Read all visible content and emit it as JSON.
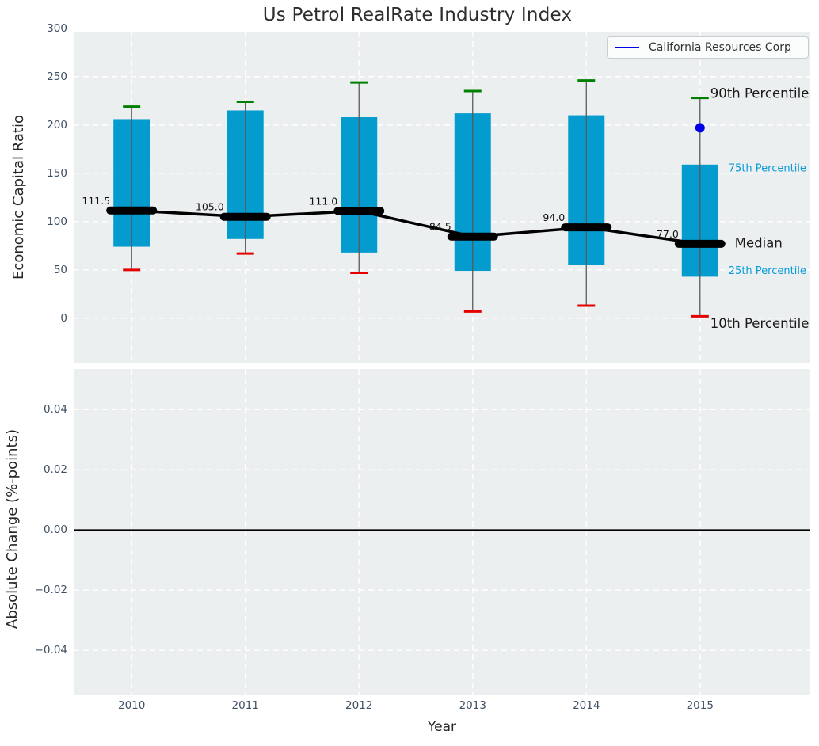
{
  "title": "Us Petrol RealRate Industry Index",
  "legend": {
    "label": "California Resources Corp",
    "line_color": "#0000e6",
    "position": "upper right"
  },
  "colors": {
    "panel_background": "#ebeff0",
    "grid": "#ffffff",
    "box_fill": "#049bce",
    "whisker": "#5a5a5a",
    "cap_90th": "#008000",
    "cap_10th": "#e50000",
    "median": "#000000",
    "company_point": "#0000e6",
    "tick_label": "#3f5063",
    "percentile_minor_label": "#0a9bd6",
    "percentile_major_label": "#1a1a1a",
    "zero_line": "#000000"
  },
  "chart_data": [
    {
      "type": "box",
      "panel": "top",
      "title": "Us Petrol RealRate Industry Index",
      "xlabel": "",
      "ylabel": "Economic Capital Ratio",
      "categories": [
        2010,
        2011,
        2012,
        2013,
        2014,
        2015
      ],
      "yticks": [
        {
          "v": 300,
          "label": "300"
        },
        {
          "v": 250,
          "label": "250"
        },
        {
          "v": 200,
          "label": "200"
        },
        {
          "v": 150,
          "label": "150"
        },
        {
          "v": 100,
          "label": "100"
        },
        {
          "v": 50,
          "label": "50"
        },
        {
          "v": 0,
          "label": "0"
        }
      ],
      "ylim": [
        -46,
        296.5
      ],
      "xlim": [
        2009.49,
        2015.97
      ],
      "grid": true,
      "boxes": [
        {
          "year": 2010,
          "p10": 50,
          "p25": 74,
          "median": 111.5,
          "p75": 206,
          "p90": 219,
          "median_label": "111.5"
        },
        {
          "year": 2011,
          "p10": 67,
          "p25": 82,
          "median": 105.0,
          "p75": 215,
          "p90": 224,
          "median_label": "105.0"
        },
        {
          "year": 2012,
          "p10": 47,
          "p25": 68,
          "median": 111.0,
          "p75": 208,
          "p90": 244,
          "median_label": "111.0"
        },
        {
          "year": 2013,
          "p10": 7,
          "p25": 49,
          "median": 84.5,
          "p75": 212,
          "p90": 235,
          "median_label": "84.5"
        },
        {
          "year": 2014,
          "p10": 13,
          "p25": 55,
          "median": 94.0,
          "p75": 210,
          "p90": 246,
          "median_label": "94.0"
        },
        {
          "year": 2015,
          "p10": 2,
          "p25": 43,
          "median": 77.0,
          "p75": 159,
          "p90": 228,
          "median_label": "77.0"
        }
      ],
      "median_line": [
        111.5,
        105.0,
        111.0,
        84.5,
        94.0,
        77.0
      ],
      "series": [
        {
          "name": "California Resources Corp",
          "type": "scatter",
          "color": "#0000e6",
          "points": [
            {
              "x": 2015,
              "y": 197
            }
          ]
        }
      ],
      "annotations": [
        {
          "text": "90th Percentile",
          "kind": "major",
          "at_value": 233,
          "dx": 13
        },
        {
          "text": "75th Percentile",
          "kind": "minor",
          "at_value": 155,
          "dx": 36
        },
        {
          "text": "Median",
          "kind": "major",
          "at_value": 78,
          "dx": 44
        },
        {
          "text": "25th Percentile",
          "kind": "minor",
          "at_value": 49,
          "dx": 36
        },
        {
          "text": "10th Percentile",
          "kind": "major",
          "at_value": -5,
          "dx": 13
        }
      ]
    },
    {
      "type": "line",
      "panel": "bottom",
      "xlabel": "Year",
      "ylabel": "Absolute Change (%-points)",
      "yticks": [
        {
          "v": 0.04,
          "label": "0.04"
        },
        {
          "v": 0.02,
          "label": "0.02"
        },
        {
          "v": 0.0,
          "label": "0.00"
        },
        {
          "v": -0.02,
          "label": "−0.02"
        },
        {
          "v": -0.04,
          "label": "−0.04"
        }
      ],
      "xticks": [
        {
          "v": 2010,
          "label": "2010"
        },
        {
          "v": 2011,
          "label": "2011"
        },
        {
          "v": 2012,
          "label": "2012"
        },
        {
          "v": 2013,
          "label": "2013"
        },
        {
          "v": 2014,
          "label": "2014"
        },
        {
          "v": 2015,
          "label": "2015"
        }
      ],
      "ylim": [
        -0.0547,
        0.0535
      ],
      "xlim": [
        2009.49,
        2015.97
      ],
      "grid": true,
      "zero_line": 0.0,
      "series": []
    }
  ]
}
